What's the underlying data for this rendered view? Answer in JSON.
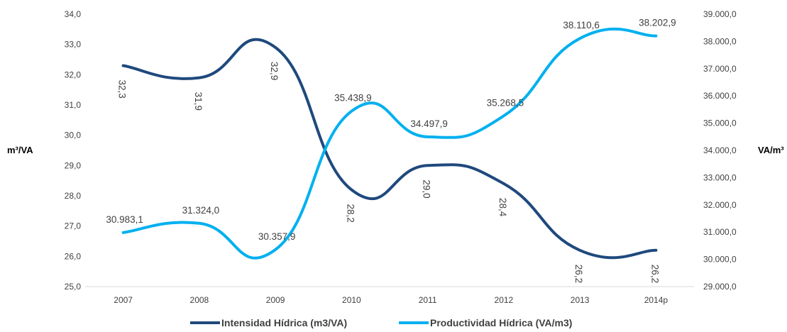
{
  "chart_data": {
    "type": "line",
    "smooth": true,
    "categories": [
      "2007",
      "2008",
      "2009",
      "2010",
      "2011",
      "2012",
      "2013",
      "2014p"
    ],
    "y_left": {
      "label": "m³/VA",
      "ylim": [
        25.0,
        34.0
      ],
      "ticks": [
        "25,0",
        "26,0",
        "27,0",
        "28,0",
        "29,0",
        "30,0",
        "31,0",
        "32,0",
        "33,0",
        "34,0"
      ]
    },
    "y_right": {
      "label": "VA/m³",
      "ylim": [
        29000.0,
        39000.0
      ],
      "ticks": [
        "29.000,0",
        "30.000,0",
        "31.000,0",
        "32.000,0",
        "33.000,0",
        "34.000,0",
        "35.000,0",
        "36.000,0",
        "37.000,0",
        "38.000,0",
        "39.000,0"
      ]
    },
    "grid": false,
    "legend_position": "bottom",
    "series": [
      {
        "name": "Intensidad Hídrica (m3/VA)",
        "axis": "left",
        "color": "#1f497d",
        "values": [
          32.3,
          31.9,
          32.9,
          28.2,
          29.0,
          28.4,
          26.2,
          26.2
        ],
        "labels": [
          "32,3",
          "31,9",
          "32,9",
          "28,2",
          "29,0",
          "28,4",
          "26,2",
          "26,2"
        ]
      },
      {
        "name": "Productividad Hídrica (VA/m3)",
        "axis": "right",
        "color": "#00b0f0",
        "values": [
          30983.1,
          31324.0,
          30357.9,
          35438.9,
          34497.9,
          35268.5,
          38110.6,
          38202.9
        ],
        "labels": [
          "30.983,1",
          "31.324,0",
          "30.357,9",
          "35.438,9",
          "34.497,9",
          "35.268,5",
          "38.110,6",
          "38.202,9"
        ]
      }
    ]
  }
}
